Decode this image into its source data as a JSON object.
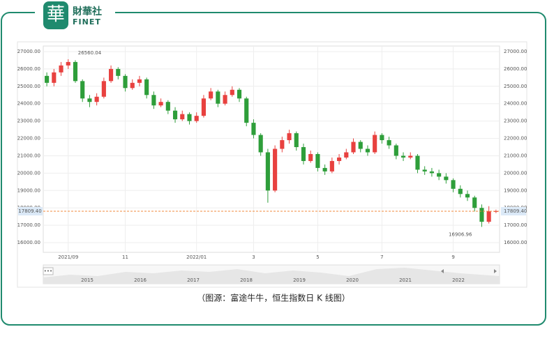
{
  "header": {
    "logo_char": "華",
    "brand": "財華社",
    "brand_en": "FINET"
  },
  "chart_data": {
    "type": "candlestick",
    "open": [
      25600,
      25200,
      25800,
      26200,
      26400,
      25300,
      24300,
      24100,
      24400,
      25300,
      26000,
      25600,
      24900,
      25200,
      25400,
      24500,
      23900,
      24100,
      23600,
      23100,
      23400,
      23000,
      23300,
      24300,
      24700,
      24000,
      24500,
      24800,
      24300,
      22900,
      22200,
      21200,
      19000,
      21400,
      21900,
      22300,
      21500,
      20700,
      21100,
      20300,
      20100,
      20700,
      20900,
      21200,
      21800,
      21400,
      21200,
      22200,
      21900,
      21600,
      21000,
      20900,
      21000,
      20200,
      20100,
      20000,
      19800,
      19600,
      19100,
      18800,
      18600,
      18000,
      17200,
      17800
    ],
    "high": [
      25800,
      26000,
      26400,
      26560.04,
      26500,
      25400,
      24500,
      24600,
      25500,
      26200,
      26100,
      25700,
      25400,
      25600,
      25500,
      24700,
      24300,
      24200,
      23800,
      23600,
      23500,
      23500,
      24500,
      24900,
      24800,
      24700,
      25000,
      24900,
      24400,
      23100,
      22300,
      21400,
      21600,
      22100,
      22500,
      22400,
      21700,
      21300,
      21200,
      20500,
      20900,
      21100,
      21400,
      22000,
      21900,
      21600,
      22400,
      22300,
      22100,
      21700,
      21200,
      21200,
      21100,
      20400,
      20300,
      20200,
      20000,
      19700,
      19300,
      19000,
      18700,
      18200,
      18100,
      17900
    ],
    "low": [
      25000,
      25000,
      25600,
      26000,
      25200,
      24100,
      23800,
      23900,
      24300,
      25200,
      25400,
      24700,
      24800,
      25000,
      24300,
      23700,
      23800,
      23400,
      22900,
      23000,
      22800,
      22900,
      23200,
      24200,
      23800,
      23900,
      24400,
      24100,
      22700,
      22000,
      21000,
      18300,
      18900,
      21200,
      21700,
      21300,
      20500,
      20600,
      20100,
      19900,
      20000,
      20500,
      20800,
      21100,
      21200,
      21000,
      21100,
      21700,
      21400,
      20800,
      20700,
      20800,
      20000,
      19900,
      19800,
      19600,
      19400,
      18900,
      18600,
      18400,
      17800,
      16906.96,
      17100,
      17700
    ],
    "close": [
      25200,
      25800,
      26200,
      26400,
      25300,
      24300,
      24100,
      24400,
      25300,
      26000,
      25600,
      24900,
      25200,
      25400,
      24500,
      23900,
      24100,
      23600,
      23100,
      23400,
      23000,
      23300,
      24300,
      24700,
      24000,
      24500,
      24800,
      24300,
      22900,
      22200,
      21200,
      19000,
      21400,
      21900,
      22300,
      21500,
      20700,
      21100,
      20300,
      20100,
      20700,
      20900,
      21200,
      21800,
      21400,
      21200,
      22200,
      21900,
      21600,
      21000,
      20900,
      21000,
      20200,
      20100,
      20000,
      19800,
      19600,
      19100,
      18800,
      18600,
      18000,
      17200,
      17800,
      17809.4
    ],
    "up_color": "#e8413f",
    "down_color": "#2e9e3a",
    "xlim": [
      -0.5,
      63.5
    ],
    "xticks": [
      {
        "value": 3,
        "label": "2021/09"
      },
      {
        "value": 11,
        "label": "11"
      },
      {
        "value": 21,
        "label": "2022/01"
      },
      {
        "value": 29,
        "label": "3"
      },
      {
        "value": 38,
        "label": "5"
      },
      {
        "value": 47,
        "label": "7"
      },
      {
        "value": 57,
        "label": "9"
      }
    ],
    "ylim": [
      15440,
      27320
    ],
    "yticks": [
      {
        "value": 16000,
        "label": "16000.00"
      },
      {
        "value": 17000,
        "label": "17000.00"
      },
      {
        "value": 18000,
        "label": "18000.00"
      },
      {
        "value": 19000,
        "label": "19000.00"
      },
      {
        "value": 20000,
        "label": "20000.00"
      },
      {
        "value": 21000,
        "label": "21000.00"
      },
      {
        "value": 22000,
        "label": "22000.00"
      },
      {
        "value": 23000,
        "label": "23000.00"
      },
      {
        "value": 24000,
        "label": "24000.00"
      },
      {
        "value": 25000,
        "label": "25000.00"
      },
      {
        "value": 26000,
        "label": "26000.00"
      },
      {
        "value": 27000,
        "label": "27000.00"
      }
    ],
    "grid": true,
    "last_price": {
      "value": 17809.4,
      "label": "17809.40"
    },
    "annotations": [
      26560.04,
      16906.96
    ],
    "navigator": {
      "labels": [
        "2015",
        "2016",
        "2017",
        "2018",
        "2019",
        "2020",
        "2021",
        "2022"
      ]
    }
  },
  "caption": "（图源：富途牛牛，恒生指数日 K 线图）"
}
